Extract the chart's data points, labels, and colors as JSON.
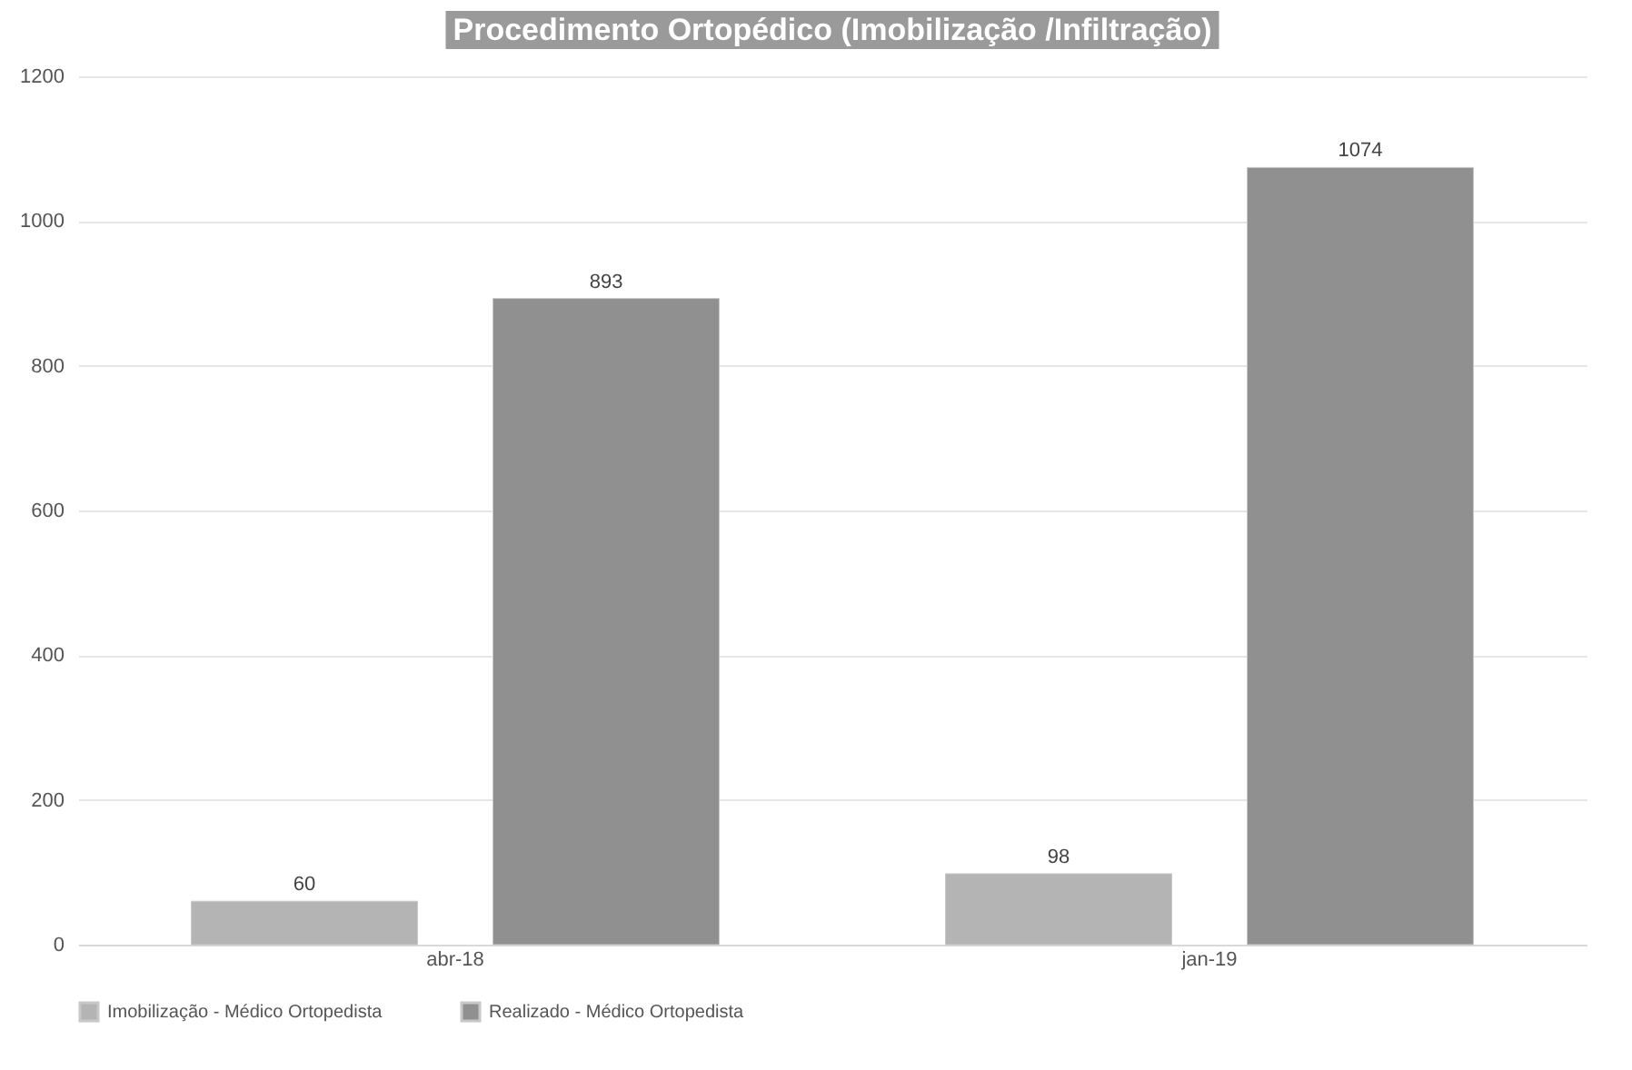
{
  "chart_data": {
    "type": "bar",
    "title": "Procedimento Ortopédico (Imobilização /Infiltração)",
    "categories": [
      "abr-18",
      "jan-19"
    ],
    "series": [
      {
        "name": "Imobilização - Médico Ortopedista",
        "color": "#b4b4b4",
        "values": [
          60,
          98
        ]
      },
      {
        "name": "Realizado - Médico Ortopedista",
        "color": "#909090",
        "values": [
          893,
          1074
        ]
      }
    ],
    "ylim": [
      0,
      1200
    ],
    "yticks": [
      0,
      200,
      400,
      600,
      800,
      1000,
      1200
    ],
    "grid": "y",
    "legend": "bottom",
    "data_labels": true
  }
}
